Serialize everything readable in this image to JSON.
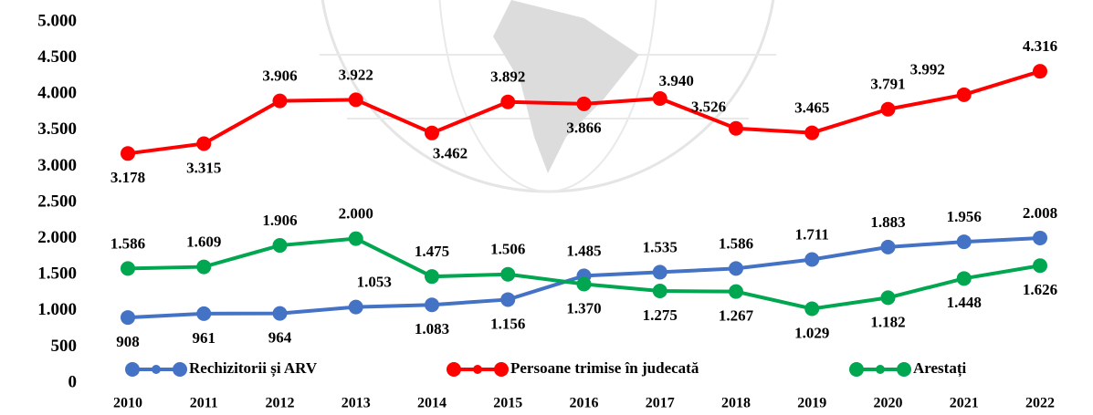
{
  "chart_data": {
    "type": "line",
    "categories": [
      "2010",
      "2011",
      "2012",
      "2013",
      "2014",
      "2015",
      "2016",
      "2017",
      "2018",
      "2019",
      "2020",
      "2021",
      "2022"
    ],
    "ylim": [
      0,
      5000
    ],
    "yticks": [
      0,
      500,
      {
        "value": 1000,
        "label": "1.000"
      },
      {
        "value": 1500,
        "label": "1.500"
      },
      {
        "value": 2000,
        "label": "2.000"
      },
      {
        "value": 2500,
        "label": "2.500"
      },
      {
        "value": 3000,
        "label": "3.000"
      },
      {
        "value": 3500,
        "label": "3.500"
      },
      {
        "value": 4000,
        "label": "4.000"
      },
      {
        "value": 4500,
        "label": "4.500"
      },
      {
        "value": 5000,
        "label": "5.000"
      }
    ],
    "legend": "bottom",
    "series": [
      {
        "name": "Rechizitorii și ARV",
        "color": "#4472c4",
        "values": [
          908,
          961,
          964,
          1053,
          1083,
          1156,
          1485,
          1535,
          1586,
          1711,
          1883,
          1956,
          2008
        ],
        "value_labels": [
          "908",
          "961",
          "964",
          "1.053",
          "1.083",
          "1.156",
          "1.485",
          "1.535",
          "1.586",
          "1.711",
          "1.883",
          "1.956",
          "2.008"
        ]
      },
      {
        "name": "Persoane trimise în judecată",
        "color": "#ff0000",
        "values": [
          3178,
          3315,
          3906,
          3922,
          3462,
          3892,
          3866,
          3940,
          3526,
          3465,
          3791,
          3992,
          4316
        ],
        "value_labels": [
          "3.178",
          "3.315",
          "3.906",
          "3.922",
          "3.462",
          "3.892",
          "3.866",
          "3.940",
          "3.526",
          "3.465",
          "3.791",
          "3.992",
          "4.316"
        ]
      },
      {
        "name": "Arestați",
        "color": "#00a650",
        "values": [
          1586,
          1609,
          1906,
          2000,
          1475,
          1506,
          1370,
          1275,
          1267,
          1029,
          1182,
          1448,
          1626
        ],
        "value_labels": [
          "1.586",
          "1.609",
          "1.906",
          "2.000",
          "1.475",
          "1.506",
          "1.370",
          "1.275",
          "1.267",
          "1.029",
          "1.182",
          "1.448",
          "1.626"
        ]
      }
    ]
  }
}
